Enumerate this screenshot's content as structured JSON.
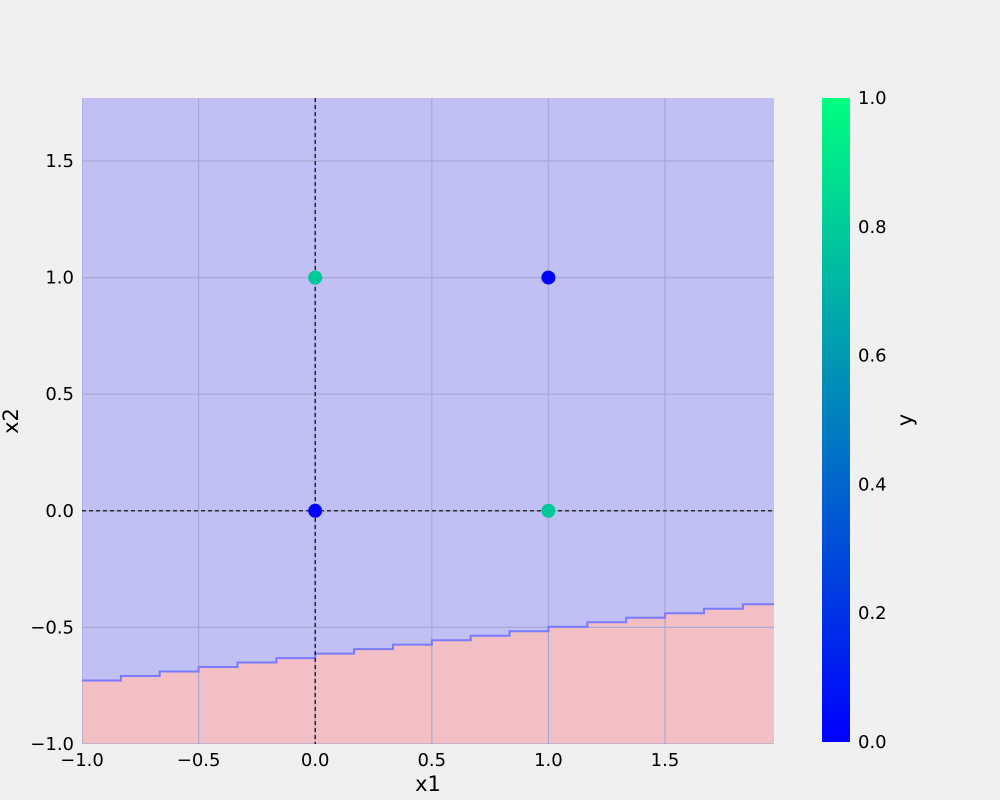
{
  "chart_data": {
    "type": "scatter",
    "title": "",
    "xlabel": "x1",
    "ylabel": "x2",
    "xlim": [
      -1.0,
      1.97
    ],
    "ylim": [
      -1.0,
      1.97
    ],
    "x_ticks": [
      -1.0,
      -0.5,
      0.0,
      0.5,
      1.0,
      1.5
    ],
    "y_ticks": [
      -1.0,
      -0.5,
      0.0,
      0.5,
      1.0,
      1.5
    ],
    "x_tick_labels": [
      "−1.0",
      "−0.5",
      "0.0",
      "0.5",
      "1.0",
      "1.5"
    ],
    "y_tick_labels": [
      "−1.0",
      "−0.5",
      "0.0",
      "0.5",
      "1.0",
      "1.5"
    ],
    "grid": true,
    "points": [
      {
        "x": 0,
        "y": 0,
        "label": 0,
        "color": "#0000ff"
      },
      {
        "x": 0,
        "y": 1,
        "label": 1,
        "color": "#00c896"
      },
      {
        "x": 1,
        "y": 0,
        "label": 1,
        "color": "#00c896"
      },
      {
        "x": 1,
        "y": 1,
        "label": 0,
        "color": "#0000ff"
      }
    ],
    "reference_lines": [
      {
        "axis": "x",
        "value": 0,
        "style": "dashed",
        "color": "#000000"
      },
      {
        "axis": "y",
        "value": 0,
        "style": "dashed",
        "color": "#000000"
      }
    ],
    "decision_boundary": {
      "x_step": 0.1667,
      "y_step": 0.0192,
      "start": [
        -1.0,
        -0.7275
      ],
      "end": [
        1.97,
        -0.366
      ]
    },
    "regions": [
      {
        "name": "class-0-region",
        "color": "#c0c0f4",
        "position": "above boundary"
      },
      {
        "name": "class-1-region",
        "color": "#f2c0c4",
        "position": "below boundary"
      }
    ],
    "colorbar": {
      "label": "y",
      "range": [
        0.0,
        1.0
      ],
      "ticks": [
        0.0,
        0.2,
        0.4,
        0.6,
        0.8,
        1.0
      ],
      "tick_labels": [
        "0.0",
        "0.2",
        "0.4",
        "0.6",
        "0.8",
        "1.0"
      ],
      "colormap": "winter",
      "color_low": "#0000ff",
      "color_high": "#00ff80"
    },
    "colors": {
      "background": "#f0f0f0",
      "grid": "#a8a8d2",
      "boundary_line": "#7a7aff"
    }
  }
}
